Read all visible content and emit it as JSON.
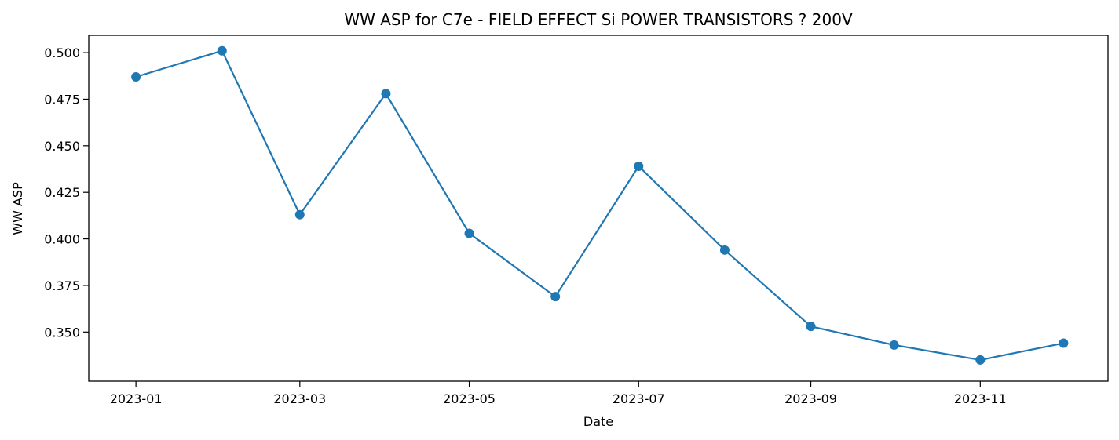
{
  "chart_data": {
    "type": "line",
    "title": "WW ASP for C7e - FIELD EFFECT Si POWER TRANSISTORS ? 200V",
    "xlabel": "Date",
    "ylabel": "WW ASP",
    "x": [
      "2023-01-01",
      "2023-02-01",
      "2023-03-01",
      "2023-04-01",
      "2023-05-01",
      "2023-06-01",
      "2023-07-01",
      "2023-08-01",
      "2023-09-01",
      "2023-10-01",
      "2023-11-01",
      "2023-12-01"
    ],
    "series": [
      {
        "values": [
          0.487,
          0.501,
          0.413,
          0.478,
          0.403,
          0.369,
          0.439,
          0.394,
          0.353,
          0.343,
          0.335,
          0.344
        ]
      }
    ],
    "xlim": [
      "2022-12-15",
      "2023-12-17"
    ],
    "ylim": [
      0.3236,
      0.5093
    ],
    "x_ticks": [
      "2023-01",
      "2023-03",
      "2023-05",
      "2023-07",
      "2023-09",
      "2023-11"
    ],
    "y_ticks": [
      "0.350",
      "0.375",
      "0.400",
      "0.425",
      "0.450",
      "0.475",
      "0.500"
    ],
    "grid": false,
    "colors": {
      "line": "#1f77b4",
      "marker": "#1f77b4",
      "axis": "#000000"
    }
  }
}
